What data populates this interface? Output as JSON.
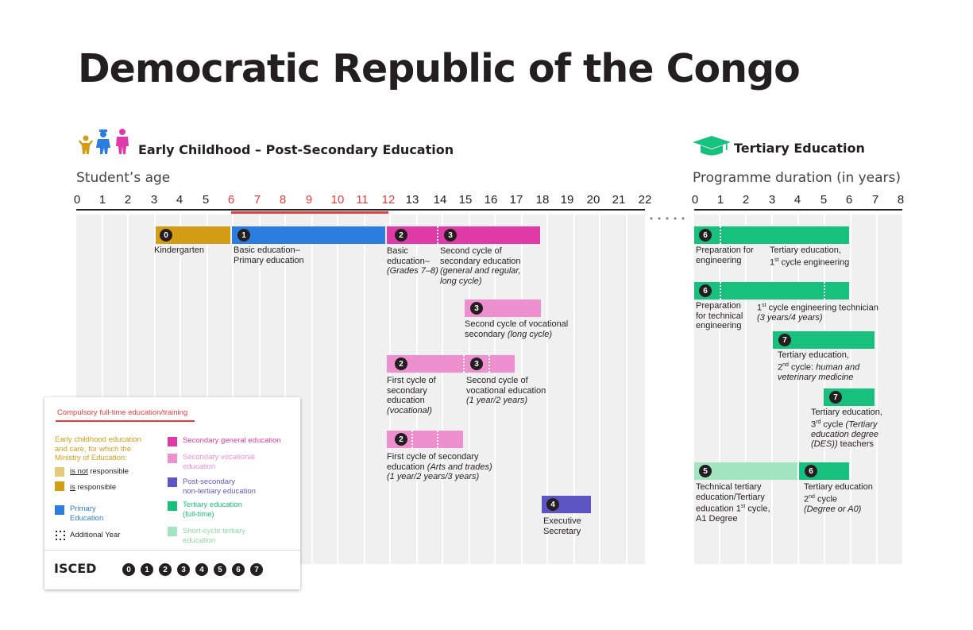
{
  "title": "Democratic Republic of the Congo",
  "sections": {
    "left_title": "Early Childhood – Post-Secondary Education",
    "right_title": "Tertiary Education",
    "left_axis": "Student’s age",
    "right_axis": "Programme duration (in years)"
  },
  "age_ticks": [
    "0",
    "1",
    "2",
    "3",
    "4",
    "5",
    "6",
    "7",
    "8",
    "9",
    "10",
    "11",
    "12",
    "13",
    "14",
    "15",
    "16",
    "17",
    "18",
    "19",
    "20",
    "21",
    "22"
  ],
  "compulsory_range": [
    6,
    12
  ],
  "duration_ticks": [
    "0",
    "1",
    "2",
    "3",
    "4",
    "5",
    "6",
    "7",
    "8"
  ],
  "colors": {
    "kindergarten": "#d39d16",
    "primary": "#2b7de0",
    "secondary_general": "#de3aa8",
    "secondary_vocational": "#ee8fcf",
    "post_secondary": "#5e55c4",
    "tertiary": "#17c17d",
    "short_cycle": "#a3e5c0",
    "compulsory": "#e63c3c",
    "ec_not_responsible": "#e6c97a"
  },
  "labels": {
    "kindergarten": "Kindergarten",
    "primary": [
      "Basic education–",
      "Primary education"
    ],
    "basic_lower": [
      "Basic",
      "education–",
      "(Grades 7–8)"
    ],
    "second_cycle_general": [
      "Second cycle of",
      "secondary education",
      "(general and regular,",
      "long cycle)"
    ],
    "second_cycle_voc_long": [
      "Second cycle of vocational",
      "secondary",
      "(long cycle)"
    ],
    "first_cycle_voc": [
      "First cycle of",
      "secondary",
      "education",
      "(vocational)"
    ],
    "second_cycle_voc": [
      "Second cycle of",
      "vocational education",
      "(1 year/2 years)"
    ],
    "first_cycle_arts": [
      "First cycle of secondary",
      "education",
      "(Arts and trades)",
      "(1 year/2 years/3 years)"
    ],
    "exec_secretary": [
      "Executive",
      "Secretary"
    ],
    "prep_eng": [
      "Preparation for",
      "engineering"
    ],
    "tert_1st_eng": [
      "Tertiary education,",
      "1",
      "st",
      " cycle engineering"
    ],
    "prep_tech": [
      "Preparation",
      "for technical",
      "engineering"
    ],
    "tech_1st": [
      "1",
      "st",
      " cycle engineering technician",
      "(3 years/4 years)"
    ],
    "tert_2nd": [
      "Tertiary education,",
      "2",
      "nd",
      " cycle:",
      "human and",
      "veterinary medicine"
    ],
    "tert_3rd": [
      "Tertiary education,",
      "3",
      "rd",
      " cycle",
      "(Tertiary",
      "education degree",
      "(DES))",
      "teachers"
    ],
    "tech_tertiary": [
      "Technical tertiary",
      "education/Tertiary",
      "education 1",
      "st",
      " cycle,",
      "A1 Degree"
    ],
    "tert_2nd_a0": [
      "Tertiary education",
      "2",
      "nd",
      " cycle",
      "(Degree or A0)"
    ]
  },
  "badges": {
    "b0": "0",
    "b1": "1",
    "b2": "2",
    "b3": "3",
    "b4": "4",
    "b5": "5",
    "b6": "6",
    "b7": "7"
  },
  "legend": {
    "compulsory": "Compulsory full-time education/training",
    "ec_heading": [
      "Early childhood education",
      "and care, for which the",
      "Ministry of Education:"
    ],
    "is_not_prefix": "is not",
    "is_not_suffix": " responsible",
    "is_prefix": "is",
    "is_suffix": " responsible",
    "primary": [
      "Primary",
      "Education"
    ],
    "additional_year": "Additional Year",
    "secondary_general": "Secondary general education",
    "secondary_vocational": [
      "Secondary vocational",
      "education"
    ],
    "post_secondary": [
      "Post-secondary",
      "non-tertiary education"
    ],
    "tertiary": [
      "Tertiary education",
      "(full-time)"
    ],
    "short_cycle": [
      "Short-cycle tertiary",
      "education"
    ],
    "isced": "ISCED",
    "isced_levels": [
      "0",
      "1",
      "2",
      "3",
      "4",
      "5",
      "6",
      "7"
    ]
  }
}
